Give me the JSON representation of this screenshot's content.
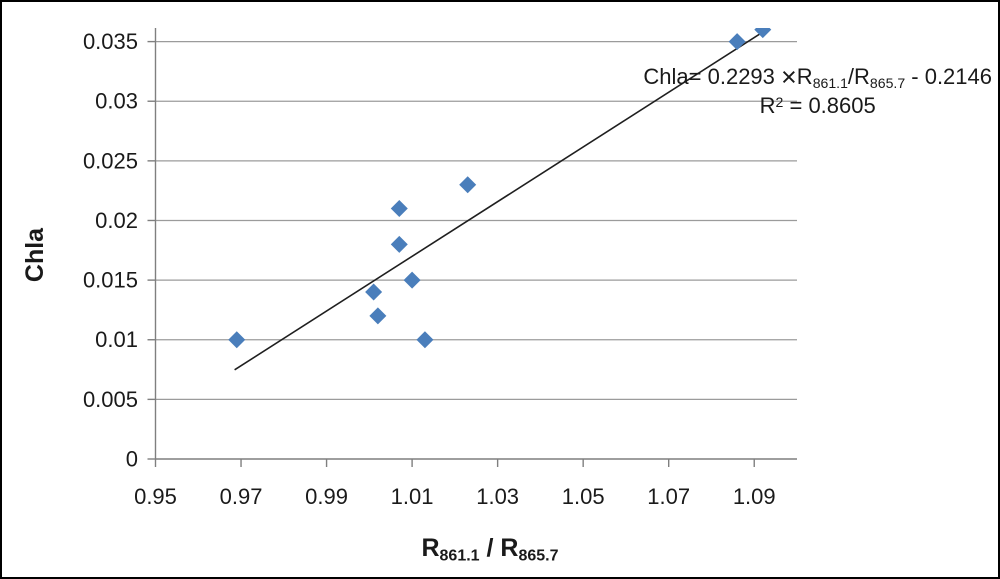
{
  "colors": {
    "marker": "#4A7EBB",
    "trendline": "#1f1f1f",
    "gridline": "#9b9b9b",
    "axis": "#7f7f7f",
    "text": "#1a1a1a",
    "frame_border": "#000000",
    "background": "#ffffff"
  },
  "chart_data": {
    "type": "scatter",
    "title": "",
    "ylabel": "Chla",
    "xlabel_parts": {
      "r1": "R",
      "sub1": "861.1",
      "mid": " / R",
      "sub2": "865.7"
    },
    "grid": "horizontal-only",
    "legend": "none",
    "x_axis": {
      "min": 0.95,
      "max": 1.1,
      "tick_values": [
        0.95,
        0.97,
        0.99,
        1.01,
        1.03,
        1.05,
        1.07,
        1.09
      ],
      "tick_labels": [
        "0.95",
        "0.97",
        "0.99",
        "1.01",
        "1.03",
        "1.05",
        "1.07",
        "1.09"
      ]
    },
    "y_axis": {
      "min": 0,
      "max": 0.03614,
      "tick_values": [
        0,
        0.005,
        0.01,
        0.015,
        0.02,
        0.025,
        0.03,
        0.035
      ],
      "tick_labels": [
        "0",
        "0.005",
        "0.01",
        "0.015",
        "0.02",
        "0.025",
        "0.03",
        "0.035"
      ]
    },
    "series": [
      {
        "name": "Chla",
        "marker": "diamond",
        "marker_color": "#4A7EBB",
        "points": [
          [
            0.969,
            0.01
          ],
          [
            1.001,
            0.014
          ],
          [
            1.002,
            0.012
          ],
          [
            1.007,
            0.018
          ],
          [
            1.007,
            0.021
          ],
          [
            1.01,
            0.015
          ],
          [
            1.013,
            0.01
          ],
          [
            1.023,
            0.023
          ],
          [
            1.086,
            0.035
          ],
          [
            1.092,
            0.036
          ]
        ]
      }
    ],
    "trendline": {
      "slope": 0.2293,
      "intercept": -0.2146,
      "x_start": 0.9685,
      "x_end": 1.0925,
      "color": "#1f1f1f"
    },
    "annotation": {
      "line1": {
        "pre": "Chla= 0.2293 ",
        "times": "×",
        "r": "R",
        "sub1": "861.1",
        "mid": "/R",
        "sub2": "865.7",
        "post": " - 0.2146"
      },
      "line2": {
        "r": "R",
        "sup": "2",
        "post": " = 0.8605"
      }
    }
  }
}
